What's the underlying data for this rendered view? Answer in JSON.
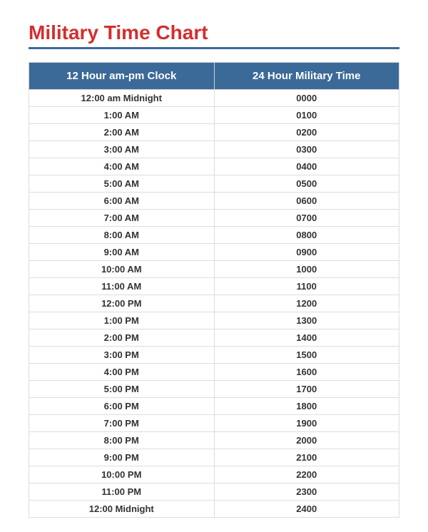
{
  "title": "Military Time Chart",
  "title_color": "#d32f2f",
  "title_fontsize": 28,
  "rule_color": "#3b6a98",
  "table": {
    "type": "table",
    "header_bg": "#3b6a98",
    "header_color": "#ffffff",
    "border_color": "#dddddd",
    "cell_color": "#333333",
    "cell_fontsize": 13,
    "columns": [
      "12 Hour am-pm Clock",
      "24 Hour Military Time"
    ],
    "rows": [
      [
        "12:00 am Midnight",
        "0000"
      ],
      [
        "1:00 AM",
        "0100"
      ],
      [
        "2:00 AM",
        "0200"
      ],
      [
        "3:00 AM",
        "0300"
      ],
      [
        "4:00 AM",
        "0400"
      ],
      [
        "5:00 AM",
        "0500"
      ],
      [
        "6:00 AM",
        "0600"
      ],
      [
        "7:00 AM",
        "0700"
      ],
      [
        "8:00 AM",
        "0800"
      ],
      [
        "9:00 AM",
        "0900"
      ],
      [
        "10:00 AM",
        "1000"
      ],
      [
        "11:00 AM",
        "1100"
      ],
      [
        "12:00 PM",
        "1200"
      ],
      [
        "1:00 PM",
        "1300"
      ],
      [
        "2:00 PM",
        "1400"
      ],
      [
        "3:00 PM",
        "1500"
      ],
      [
        "4:00 PM",
        "1600"
      ],
      [
        "5:00 PM",
        "1700"
      ],
      [
        "6:00 PM",
        "1800"
      ],
      [
        "7:00 PM",
        "1900"
      ],
      [
        "8:00 PM",
        "2000"
      ],
      [
        "9:00 PM",
        "2100"
      ],
      [
        "10:00 PM",
        "2200"
      ],
      [
        "11:00 PM",
        "2300"
      ],
      [
        "12:00 Midnight",
        "2400"
      ]
    ]
  }
}
